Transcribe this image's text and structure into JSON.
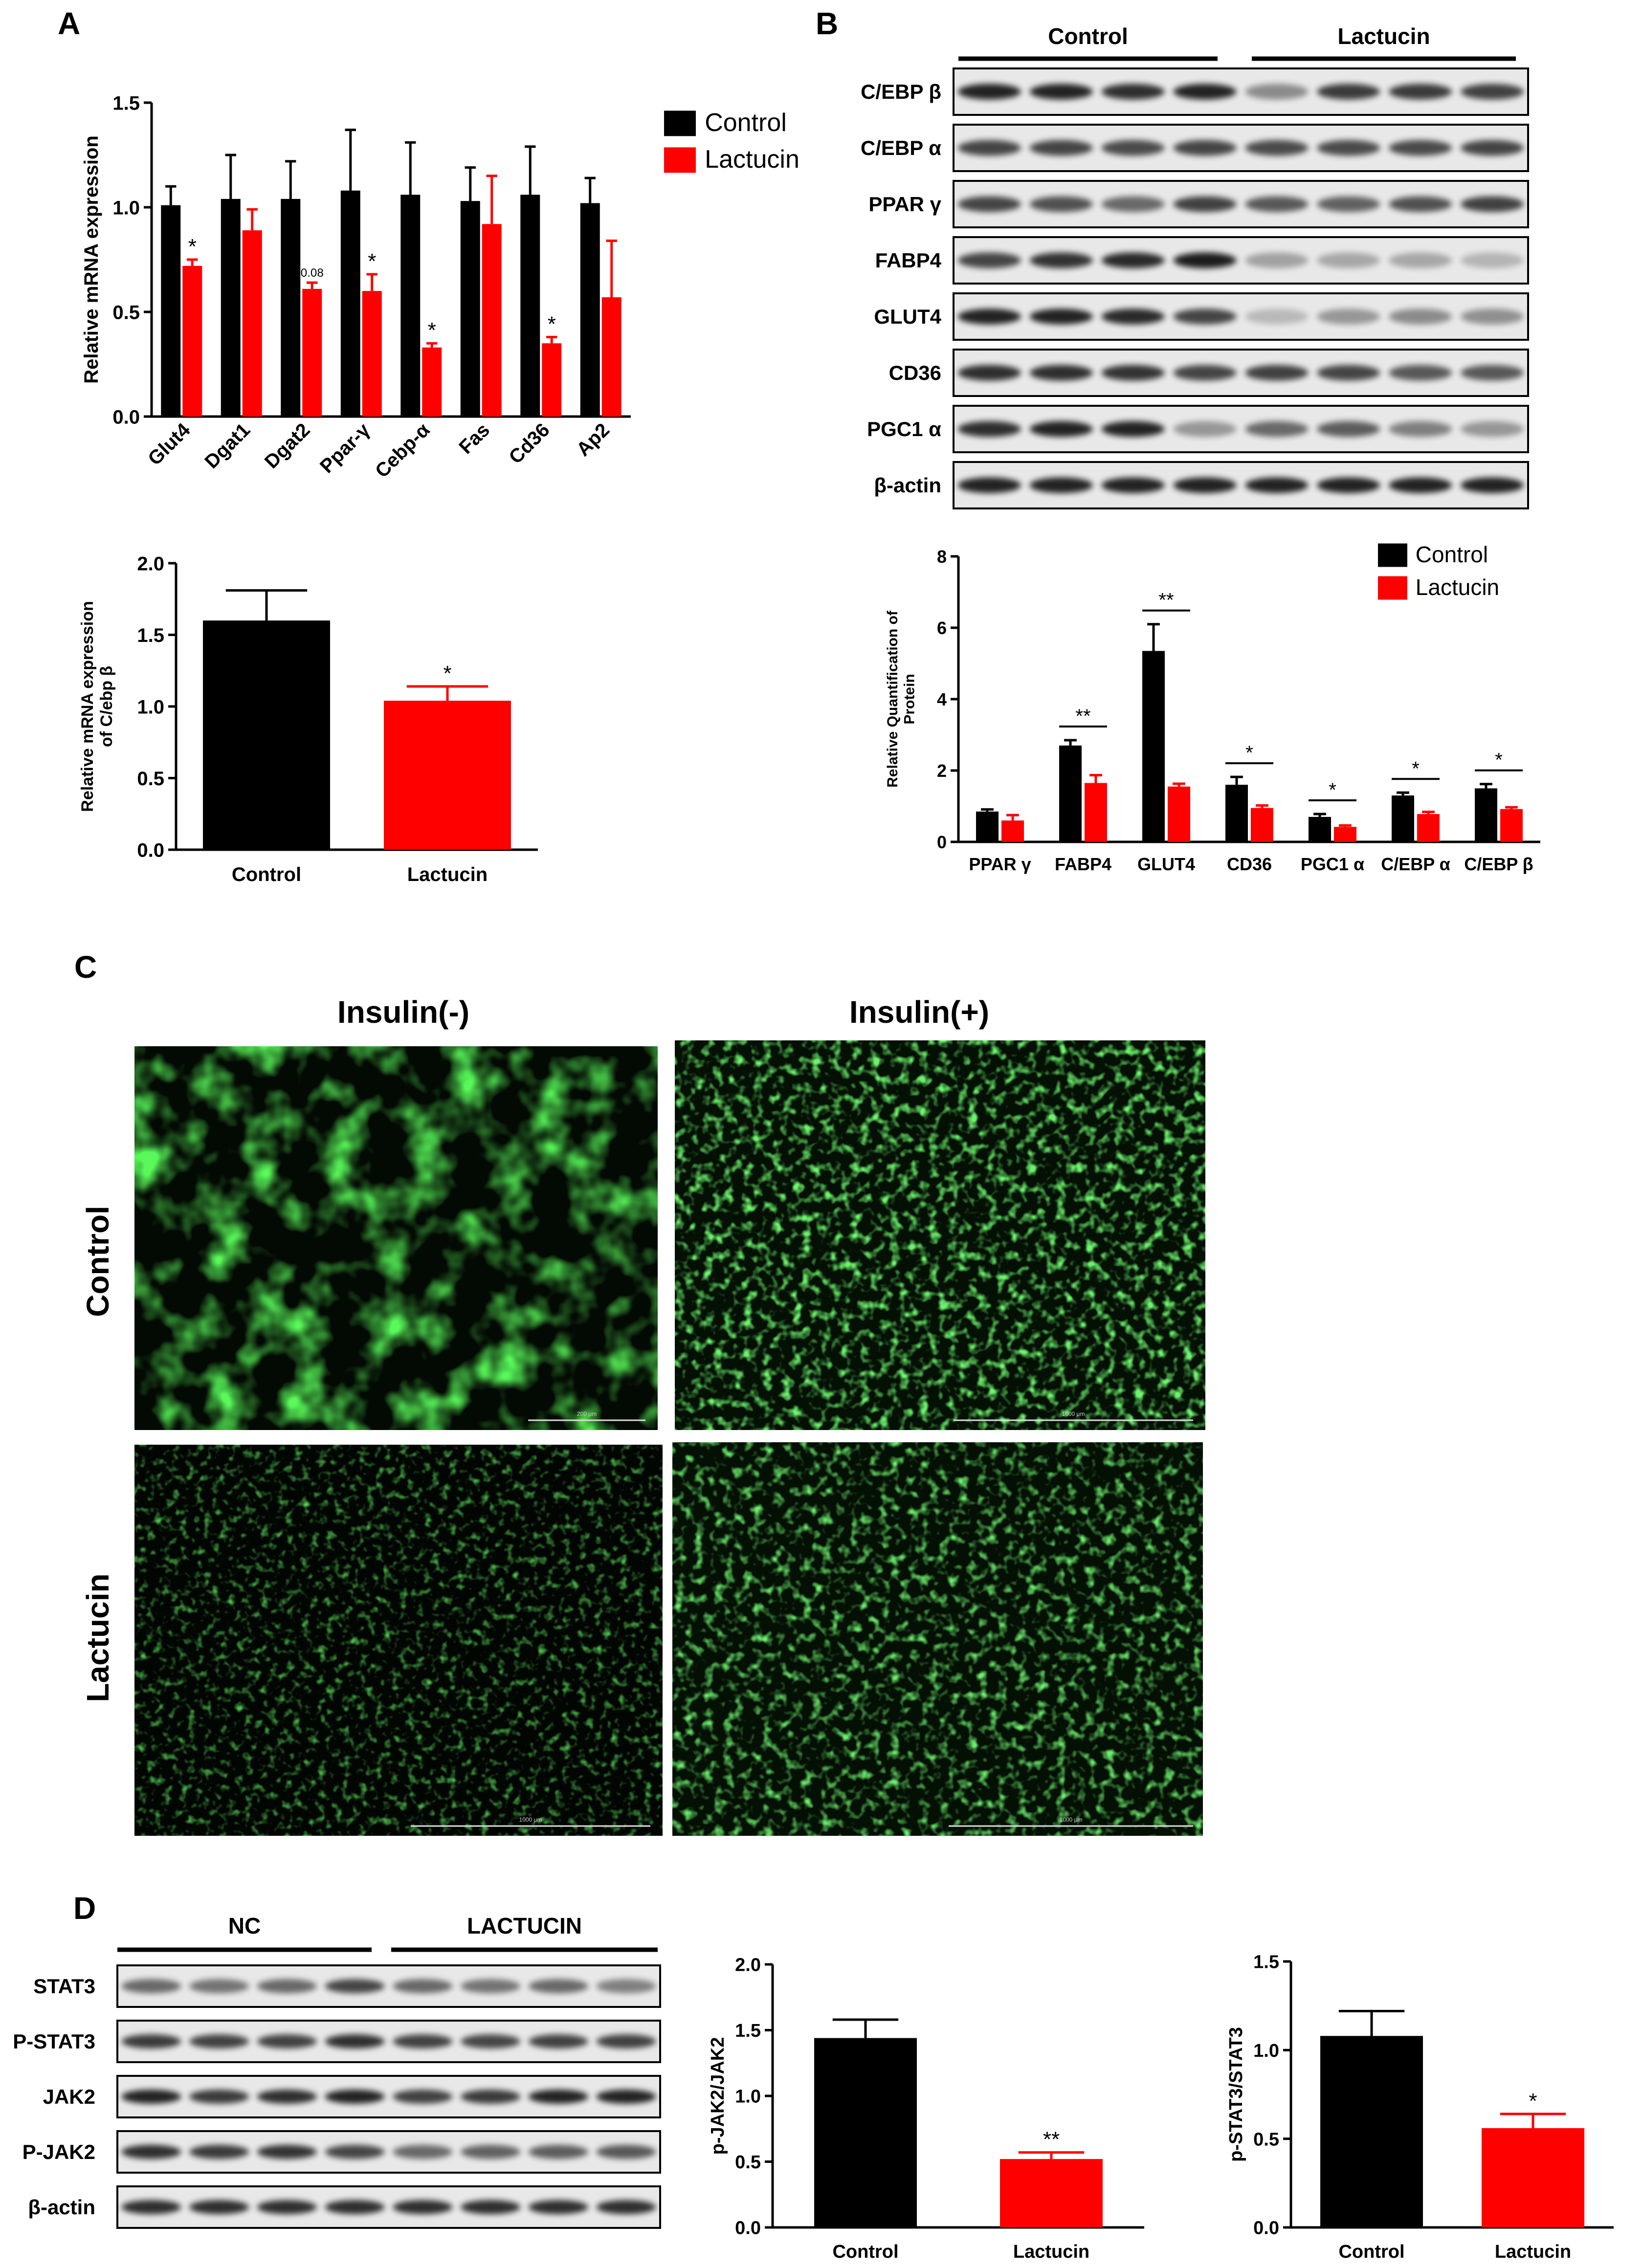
{
  "panels": {
    "A": {
      "letter": "A",
      "chart_data": [
        {
          "type": "bar",
          "ylabel": "Relative mRNA expression",
          "ylim": [
            0,
            1.5
          ],
          "yticks": [
            "0.0",
            "0.5",
            "1.0",
            "1.5"
          ],
          "categories": [
            "Glut4",
            "Dgat1",
            "Dgat2",
            "Ppar-γ",
            "Cebp-α",
            "Fas",
            "Cd36",
            "Ap2"
          ],
          "series": [
            {
              "name": "Control",
              "color": "#000000",
              "values": [
                1.01,
                1.04,
                1.04,
                1.08,
                1.06,
                1.03,
                1.06,
                1.02
              ],
              "errors": [
                0.09,
                0.21,
                0.18,
                0.29,
                0.25,
                0.16,
                0.23,
                0.12
              ]
            },
            {
              "name": "Lactucin",
              "color": "#ff0000",
              "values": [
                0.72,
                0.89,
                0.61,
                0.6,
                0.33,
                0.92,
                0.35,
                0.57
              ],
              "errors": [
                0.03,
                0.1,
                0.03,
                0.08,
                0.02,
                0.23,
                0.03,
                0.27
              ]
            }
          ],
          "annotations": [
            "*",
            "",
            "0.08",
            "*",
            "*",
            "",
            "*",
            ""
          ],
          "legend": "top-right"
        },
        {
          "type": "bar",
          "ylabel": "Relative mRNA expression of C/ebp β",
          "ylim": [
            0,
            2.0
          ],
          "yticks": [
            "0.0",
            "0.5",
            "1.0",
            "1.5",
            "2.0"
          ],
          "categories": [
            "Control",
            "Lactucin"
          ],
          "values": [
            1.6,
            1.04
          ],
          "errors": [
            0.21,
            0.1
          ],
          "colors": [
            "#000000",
            "#ff0000"
          ],
          "annotations": [
            "",
            "*"
          ]
        }
      ]
    },
    "B": {
      "letter": "B",
      "blot": {
        "groups": [
          "Control",
          "Lactucin"
        ],
        "rows": [
          "C/EBP β",
          "C/EBP α",
          "PPAR γ",
          "FABP4",
          "GLUT4",
          "CD36",
          "PGC1 α",
          "β-actin"
        ],
        "intensity": [
          [
            0.85,
            0.85,
            0.8,
            0.85,
            0.4,
            0.75,
            0.75,
            0.72
          ],
          [
            0.7,
            0.7,
            0.68,
            0.7,
            0.68,
            0.68,
            0.68,
            0.7
          ],
          [
            0.7,
            0.65,
            0.55,
            0.72,
            0.62,
            0.58,
            0.65,
            0.72
          ],
          [
            0.7,
            0.78,
            0.82,
            0.88,
            0.3,
            0.28,
            0.28,
            0.22
          ],
          [
            0.85,
            0.85,
            0.82,
            0.7,
            0.2,
            0.35,
            0.4,
            0.38
          ],
          [
            0.8,
            0.8,
            0.78,
            0.7,
            0.72,
            0.7,
            0.62,
            0.62
          ],
          [
            0.8,
            0.85,
            0.85,
            0.35,
            0.55,
            0.6,
            0.45,
            0.35
          ],
          [
            0.85,
            0.85,
            0.85,
            0.85,
            0.85,
            0.85,
            0.85,
            0.85
          ]
        ]
      },
      "chart_data": {
        "type": "bar",
        "ylabel": "Relative Quantification of Protein",
        "ylim": [
          0,
          8
        ],
        "yticks": [
          "0",
          "2",
          "4",
          "6",
          "8"
        ],
        "categories": [
          "PPAR γ",
          "FABP4",
          "GLUT4",
          "CD36",
          "PGC1 α",
          "C/EBP α",
          "C/EBP β"
        ],
        "series": [
          {
            "name": "Control",
            "color": "#000000",
            "values": [
              0.85,
              2.7,
              5.35,
              1.6,
              0.7,
              1.3,
              1.5
            ],
            "errors": [
              0.06,
              0.15,
              0.75,
              0.22,
              0.08,
              0.08,
              0.12
            ]
          },
          {
            "name": "Lactucin",
            "color": "#ff0000",
            "values": [
              0.6,
              1.65,
              1.55,
              0.95,
              0.42,
              0.78,
              0.92
            ],
            "errors": [
              0.15,
              0.22,
              0.08,
              0.07,
              0.04,
              0.06,
              0.05
            ]
          }
        ],
        "annotations": [
          "",
          "**",
          "**",
          "*",
          "*",
          "*",
          "*"
        ],
        "legend": "top-right"
      }
    },
    "C": {
      "letter": "C",
      "columns": [
        "Insulin(-)",
        "Insulin(+)"
      ],
      "rows": [
        "Control",
        "Lactucin"
      ],
      "scale_labels": [
        "200 μm",
        "1000 μm",
        "1000 μm",
        "1000 μm"
      ]
    },
    "D": {
      "letter": "D",
      "blot": {
        "groups": [
          "NC",
          "LACTUCIN"
        ],
        "rows": [
          "STAT3",
          "P-STAT3",
          "JAK2",
          "P-JAK2",
          "β-actin"
        ],
        "intensity": [
          [
            0.55,
            0.5,
            0.55,
            0.7,
            0.55,
            0.5,
            0.55,
            0.45
          ],
          [
            0.75,
            0.72,
            0.72,
            0.8,
            0.72,
            0.7,
            0.72,
            0.72
          ],
          [
            0.85,
            0.75,
            0.8,
            0.85,
            0.72,
            0.75,
            0.85,
            0.85
          ],
          [
            0.8,
            0.75,
            0.78,
            0.7,
            0.55,
            0.58,
            0.6,
            0.62
          ],
          [
            0.8,
            0.8,
            0.8,
            0.8,
            0.8,
            0.8,
            0.8,
            0.8
          ]
        ]
      },
      "chart_data": [
        {
          "type": "bar",
          "ylabel": "p-JAK2/JAK2",
          "ylim": [
            0,
            2.0
          ],
          "yticks": [
            "0.0",
            "0.5",
            "1.0",
            "1.5",
            "2.0"
          ],
          "categories": [
            "Control",
            "Lactucin"
          ],
          "values": [
            1.44,
            0.52
          ],
          "errors": [
            0.14,
            0.05
          ],
          "colors": [
            "#000000",
            "#ff0000"
          ],
          "annotations": [
            "",
            "**"
          ]
        },
        {
          "type": "bar",
          "ylabel": "p-STAT3/STAT3",
          "ylim": [
            0,
            1.5
          ],
          "yticks": [
            "0.0",
            "0.5",
            "1.0",
            "1.5"
          ],
          "categories": [
            "Control",
            "Lactucin"
          ],
          "values": [
            1.08,
            0.56
          ],
          "errors": [
            0.14,
            0.08
          ],
          "colors": [
            "#000000",
            "#ff0000"
          ],
          "annotations": [
            "",
            "*"
          ]
        }
      ]
    }
  }
}
